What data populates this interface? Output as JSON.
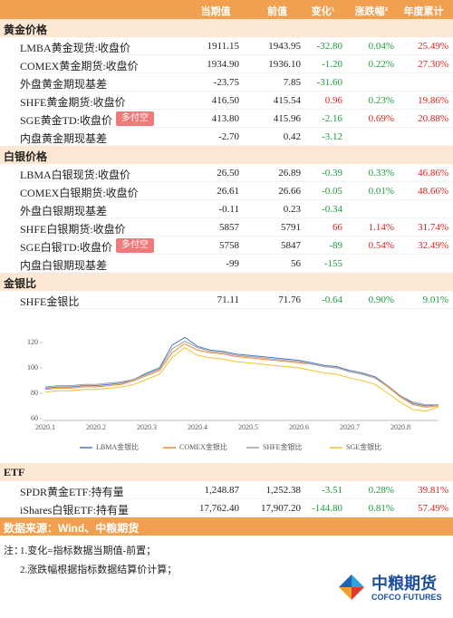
{
  "header": {
    "columns": [
      "当期值",
      "前值",
      "变化¹",
      "涨跌幅²",
      "年度累计"
    ]
  },
  "sections": [
    {
      "title": "黄金价格",
      "rows": [
        {
          "label": "LMBA黄金现货:收盘价",
          "cells": [
            "1911.15",
            "1943.95",
            "-32.80",
            "0.04%",
            "25.49%"
          ],
          "colors": [
            "#222",
            "#222",
            "#1a9c3c",
            "#1a9c3c",
            "#e0201c"
          ]
        },
        {
          "label": "COMEX黄金期货:收盘价",
          "cells": [
            "1934.90",
            "1936.10",
            "-1.20",
            "0.22%",
            "27.30%"
          ],
          "colors": [
            "#222",
            "#222",
            "#1a9c3c",
            "#1a9c3c",
            "#e0201c"
          ]
        },
        {
          "label": "外盘黄金期现基差",
          "cells": [
            "-23.75",
            "7.85",
            "-31.60",
            null,
            null
          ],
          "colors": [
            "#222",
            "#222",
            "#1a9c3c",
            null,
            null
          ]
        },
        {
          "label": "SHFE黄金期货:收盘价",
          "cells": [
            "416.50",
            "415.54",
            "0.96",
            "0.23%",
            "19.86%"
          ],
          "colors": [
            "#222",
            "#222",
            "#e0201c",
            "#1a9c3c",
            "#e0201c"
          ]
        },
        {
          "label": "SGE黄金TD:收盘价",
          "badge": "多付空",
          "cells": [
            "413.80",
            "415.96",
            "-2.16",
            "0.69%",
            "20.88%"
          ],
          "colors": [
            "#222",
            "#222",
            "#1a9c3c",
            "#e0201c",
            "#e0201c"
          ]
        },
        {
          "label": "内盘黄金期现基差",
          "cells": [
            "-2.70",
            "0.42",
            "-3.12",
            null,
            null
          ],
          "colors": [
            "#222",
            "#222",
            "#1a9c3c",
            null,
            null
          ]
        }
      ]
    },
    {
      "title": "白银价格",
      "rows": [
        {
          "label": "LBMA白银现货:收盘价",
          "cells": [
            "26.50",
            "26.89",
            "-0.39",
            "0.33%",
            "46.86%"
          ],
          "colors": [
            "#222",
            "#222",
            "#1a9c3c",
            "#1a9c3c",
            "#e0201c"
          ]
        },
        {
          "label": "COMEX白银期货:收盘价",
          "cells": [
            "26.61",
            "26.66",
            "-0.05",
            "0.01%",
            "48.66%"
          ],
          "colors": [
            "#222",
            "#222",
            "#1a9c3c",
            "#1a9c3c",
            "#e0201c"
          ]
        },
        {
          "label": "外盘白银期现基差",
          "cells": [
            "-0.11",
            "0.23",
            "-0.34",
            null,
            null
          ],
          "colors": [
            "#222",
            "#222",
            "#1a9c3c",
            null,
            null
          ]
        },
        {
          "label": "SHFE白银期货:收盘价",
          "cells": [
            "5857",
            "5791",
            "66",
            "1.14%",
            "31.74%"
          ],
          "colors": [
            "#222",
            "#222",
            "#e0201c",
            "#e0201c",
            "#e0201c"
          ]
        },
        {
          "label": "SGE白银TD:收盘价",
          "badge": "多付空",
          "cells": [
            "5758",
            "5847",
            "-89",
            "0.54%",
            "32.49%"
          ],
          "colors": [
            "#222",
            "#222",
            "#1a9c3c",
            "#e0201c",
            "#e0201c"
          ]
        },
        {
          "label": "内盘白银期现基差",
          "cells": [
            "-99",
            "56",
            "-155",
            null,
            null
          ],
          "colors": [
            "#222",
            "#222",
            "#1a9c3c",
            null,
            null
          ]
        }
      ]
    },
    {
      "title": "金银比",
      "rows": [
        {
          "label": "SHFE金银比",
          "cells": [
            "71.11",
            "71.76",
            "-0.64",
            "0.90%",
            "9.01%"
          ],
          "colors": [
            "#222",
            "#222",
            "#1a9c3c",
            "#1a9c3c",
            "#1a9c3c"
          ]
        }
      ]
    },
    {
      "title": "ETF",
      "rows": [
        {
          "label": "SPDR黄金ETF:持有量",
          "cells": [
            "1,248.87",
            "1,252.38",
            "-3.51",
            "0.28%",
            "39.81%"
          ],
          "colors": [
            "#222",
            "#222",
            "#1a9c3c",
            "#1a9c3c",
            "#e0201c"
          ]
        },
        {
          "label": "iShares白银ETF:持有量",
          "cells": [
            "17,762.40",
            "17,907.20",
            "-144.80",
            "0.81%",
            "57.49%"
          ],
          "colors": [
            "#222",
            "#222",
            "#1a9c3c",
            "#1a9c3c",
            "#e0201c"
          ]
        }
      ]
    }
  ],
  "chart_data": {
    "type": "line",
    "categories": [
      "2020.1",
      null,
      null,
      null,
      "2020.2",
      null,
      null,
      null,
      "2020.3",
      null,
      null,
      null,
      "2020.4",
      null,
      null,
      null,
      "2020.5",
      null,
      null,
      null,
      "2020.6",
      null,
      null,
      null,
      "2020.7",
      null,
      null,
      null,
      "2020.8",
      null,
      null,
      null
    ],
    "series": [
      {
        "name": "LBMA金银比",
        "color": "#4a78c8",
        "values": [
          84,
          85,
          85,
          86,
          86,
          87,
          88,
          91,
          96,
          100,
          118,
          124,
          117,
          114,
          113,
          111,
          110,
          109,
          108,
          107,
          106,
          104,
          102,
          101,
          98,
          96,
          93,
          86,
          78,
          72,
          70,
          71
        ]
      },
      {
        "name": "COMEX金银比",
        "color": "#ee8a3c",
        "values": [
          83,
          84,
          84,
          85,
          85,
          86,
          87,
          90,
          94,
          98,
          112,
          119,
          114,
          112,
          111,
          109,
          108,
          107,
          106,
          105,
          104,
          103,
          101,
          100,
          97,
          95,
          92,
          85,
          77,
          71,
          69,
          70
        ]
      },
      {
        "name": "SHFE金银比",
        "color": "#a0a0a0",
        "values": [
          85,
          86,
          86,
          87,
          87,
          88,
          89,
          91,
          95,
          99,
          115,
          121,
          116,
          113,
          112,
          110,
          109,
          108,
          107,
          106,
          105,
          103,
          101,
          100,
          97,
          95,
          92,
          86,
          78,
          73,
          71,
          71
        ]
      },
      {
        "name": "SGE金银比",
        "color": "#f2c12e",
        "values": [
          81,
          82,
          82,
          83,
          83,
          84,
          85,
          87,
          91,
          95,
          108,
          116,
          110,
          108,
          107,
          105,
          104,
          103,
          102,
          101,
          100,
          98,
          96,
          95,
          92,
          90,
          87,
          80,
          73,
          67,
          66,
          69
        ]
      }
    ],
    "ylim": [
      60,
      130
    ],
    "yticks": [
      60,
      80,
      100,
      120
    ]
  },
  "footer": {
    "source": "数据来源：Wind、中粮期货",
    "note_label": "注：",
    "notes": [
      "1.变化=指标数据当期值-前置；",
      "2.涨跌幅根据指标数据结算价计算；"
    ]
  },
  "logo": {
    "name": "中粮期货",
    "english": "COFCO FUTURES"
  }
}
